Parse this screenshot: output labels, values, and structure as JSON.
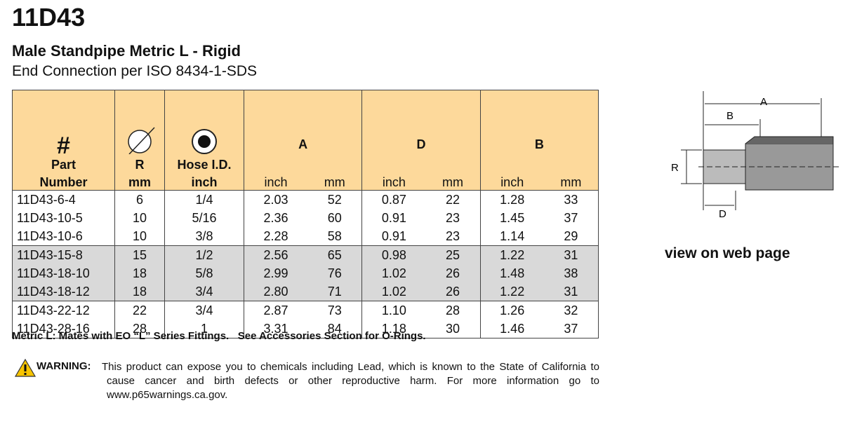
{
  "header": {
    "title": "11D43",
    "subtitle": "Male Standpipe Metric L - Rigid",
    "connection": "End Connection per ISO 8434-1-SDS"
  },
  "table": {
    "header": {
      "symbol": "#",
      "part": "Part",
      "number": "Number",
      "r": "R",
      "r_unit": "mm",
      "hose": "Hose I.D.",
      "hose_unit": "inch",
      "groups": [
        "A",
        "D",
        "B"
      ],
      "units": [
        "inch",
        "mm"
      ]
    },
    "rows": [
      [
        "11D43-6-4",
        "6",
        "1/4",
        "2.03",
        "52",
        "0.87",
        "22",
        "1.28",
        "33"
      ],
      [
        "11D43-10-5",
        "10",
        "5/16",
        "2.36",
        "60",
        "0.91",
        "23",
        "1.45",
        "37"
      ],
      [
        "11D43-10-6",
        "10",
        "3/8",
        "2.28",
        "58",
        "0.91",
        "23",
        "1.14",
        "29"
      ],
      [
        "11D43-15-8",
        "15",
        "1/2",
        "2.56",
        "65",
        "0.98",
        "25",
        "1.22",
        "31"
      ],
      [
        "11D43-18-10",
        "18",
        "5/8",
        "2.99",
        "76",
        "1.02",
        "26",
        "1.48",
        "38"
      ],
      [
        "11D43-18-12",
        "18",
        "3/4",
        "2.80",
        "71",
        "1.02",
        "26",
        "1.22",
        "31"
      ],
      [
        "11D43-22-12",
        "22",
        "3/4",
        "2.87",
        "73",
        "1.10",
        "28",
        "1.26",
        "32"
      ],
      [
        "11D43-28-16",
        "28",
        "1",
        "3.31",
        "84",
        "1.18",
        "30",
        "1.46",
        "37"
      ]
    ]
  },
  "note": "Metric L: Mates with EO “L” Series Fittings.   See Accessories Section for O-Rings.",
  "warning": {
    "label": "WARNING:",
    "text": "This product can expose you to chemicals including Lead, which is known to the State of California to cause cancer and birth defects or other reproductive harm.  For more information go to www.p65warnings.ca.gov."
  },
  "diagram": {
    "labels": [
      "A",
      "B",
      "R",
      "D"
    ]
  },
  "link": "view on web page"
}
